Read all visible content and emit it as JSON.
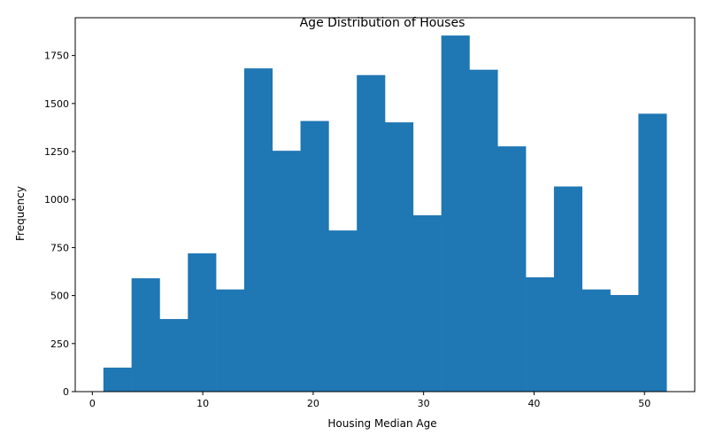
{
  "chart_data": {
    "type": "bar",
    "title": "Age Distribution of Houses",
    "xlabel": "Housing Median Age",
    "ylabel": "Frequency",
    "bar_color": "#1f77b4",
    "bin_edges": [
      1,
      3.55,
      6.1,
      8.65,
      11.2,
      13.75,
      16.3,
      18.85,
      21.4,
      23.95,
      26.5,
      29.05,
      31.6,
      34.15,
      36.7,
      39.25,
      41.8,
      44.35,
      46.9,
      49.45,
      52
    ],
    "values": [
      125,
      590,
      378,
      720,
      532,
      1683,
      1254,
      1409,
      839,
      1648,
      1402,
      918,
      1854,
      1676,
      1277,
      595,
      1068,
      532,
      503,
      1447
    ],
    "xlim": [
      -1.55,
      54.55
    ],
    "ylim": [
      0,
      1946.7
    ],
    "xticks": [
      0,
      10,
      20,
      30,
      40,
      50
    ],
    "yticks": [
      0,
      250,
      500,
      750,
      1000,
      1250,
      1500,
      1750
    ],
    "grid": false
  }
}
